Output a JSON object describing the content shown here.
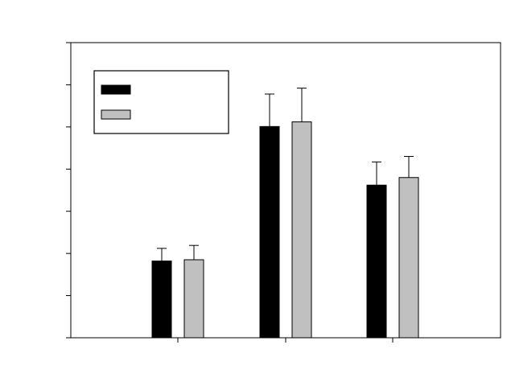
{
  "chart_data": {
    "type": "bar",
    "title": "",
    "xlabel": "",
    "ylabel": "",
    "categories": [
      "",
      "",
      ""
    ],
    "ylim": [
      0,
      7
    ],
    "yticks": [
      0,
      1,
      2,
      3,
      4,
      5,
      6,
      7
    ],
    "grid": false,
    "legend_placement": "top-left",
    "series": [
      {
        "color": "#000000",
        "values": [
          1.82,
          5.01,
          3.62
        ],
        "errors": [
          0.3,
          0.77,
          0.55
        ]
      },
      {
        "color": "#c0c0c0",
        "values": [
          1.85,
          5.12,
          3.8
        ],
        "errors": [
          0.34,
          0.8,
          0.5
        ]
      }
    ]
  }
}
